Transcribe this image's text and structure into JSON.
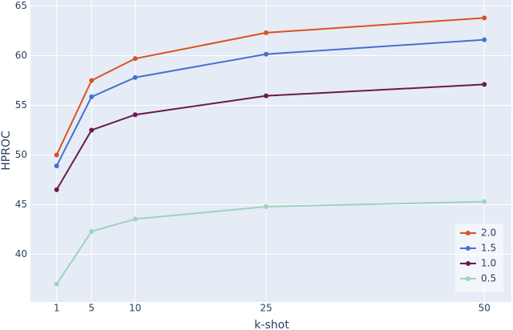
{
  "chart_data": {
    "type": "line",
    "x_label": "k-shot",
    "y_label": "HPROC",
    "x": [
      1,
      5,
      10,
      25,
      50
    ],
    "xlim": [
      -2,
      53.1
    ],
    "xticks": [
      1,
      5,
      10,
      25,
      50
    ],
    "ylim": [
      35.2,
      65.6
    ],
    "yticks": [
      40,
      45,
      50,
      55,
      60,
      65
    ],
    "grid": true,
    "legend": "bottom-right",
    "series": [
      {
        "name": "2.0",
        "color": "#d9541e",
        "values": [
          50.0,
          57.5,
          59.7,
          62.3,
          63.8
        ]
      },
      {
        "name": "1.5",
        "color": "#4a6fd0",
        "values": [
          48.9,
          55.85,
          57.8,
          60.15,
          61.6
        ]
      },
      {
        "name": "1.0",
        "color": "#6b1a4f",
        "values": [
          46.5,
          52.5,
          54.05,
          55.95,
          57.1
        ]
      },
      {
        "name": "0.5",
        "color": "#9fd3c0",
        "values": [
          37.0,
          42.3,
          43.55,
          44.8,
          45.3
        ]
      }
    ]
  }
}
